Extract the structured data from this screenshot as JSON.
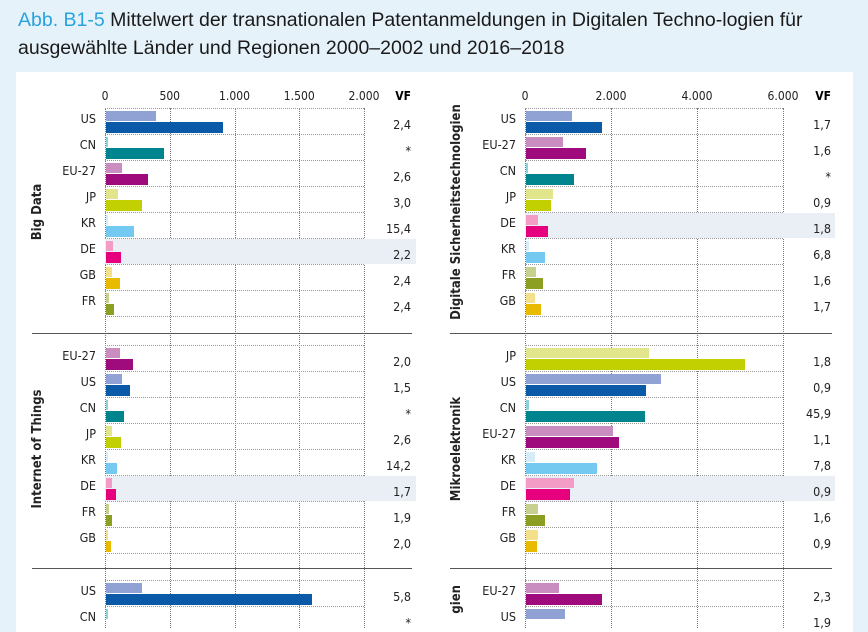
{
  "title": {
    "number": "Abb. B1-5",
    "text": " Mittelwert der transnationalen Patentanmeldungen in Digitalen Techno-logien für ausgewählte Länder und Regionen 2000–2002 und 2016–2018"
  },
  "colors": {
    "US": [
      "#8fa2d3",
      "#0b5aa7"
    ],
    "CN": [
      "#8fd3da",
      "#00858f"
    ],
    "EU-27": [
      "#c98ebf",
      "#9f0a7c"
    ],
    "JP": [
      "#e1e68c",
      "#c2cf00"
    ],
    "KR": [
      "#d6edf9",
      "#74c9f0"
    ],
    "DE": [
      "#f29cc6",
      "#e6007e"
    ],
    "GB": [
      "#f4df8a",
      "#e8bb00"
    ],
    "FR": [
      "#c7d08f",
      "#8c9f22"
    ]
  },
  "highlight": "DE",
  "vf_header": "VF",
  "chart_data": [
    {
      "type": "bar",
      "title": "Big Data",
      "xlim": [
        0,
        2000
      ],
      "ticks": [
        "0",
        "500",
        "1.000",
        "1.500",
        "2.000"
      ],
      "tick_values": [
        0,
        500,
        1000,
        1500,
        2000
      ],
      "categories": [
        "US",
        "CN",
        "EU-27",
        "JP",
        "KR",
        "DE",
        "GB",
        "FR"
      ],
      "series": [
        {
          "values": [
            385,
            5,
            127,
            96,
            14,
            54,
            47,
            27
          ]
        },
        {
          "values": [
            905,
            450,
            324,
            281,
            219,
            113,
            111,
            62
          ]
        }
      ],
      "vf": [
        "2,4",
        "*",
        "2,6",
        "3,0",
        "15,4",
        "2,2",
        "2,4",
        "2,4"
      ]
    },
    {
      "type": "bar",
      "title": "Internet of Things",
      "xlim": [
        0,
        2000
      ],
      "categories": [
        "EU-27",
        "US",
        "CN",
        "JP",
        "KR",
        "DE",
        "FR",
        "GB"
      ],
      "series": [
        {
          "values": [
            106,
            126,
            2,
            44,
            6,
            47,
            23,
            18
          ]
        },
        {
          "values": [
            211,
            188,
            137,
            116,
            83,
            80,
            44,
            36
          ]
        }
      ],
      "vf": [
        "2,0",
        "1,5",
        "*",
        "2,6",
        "14,2",
        "1,7",
        "1,9",
        "2,0"
      ]
    },
    {
      "type": "bar",
      "title": "",
      "xlim": [
        0,
        2000
      ],
      "categories": [
        "US",
        "CN"
      ],
      "series": [
        {
          "values": [
            275,
            5
          ]
        },
        {
          "values": [
            1594,
            null
          ]
        }
      ],
      "vf": [
        "5,8",
        "*"
      ]
    },
    {
      "type": "bar",
      "title": "Digitale Sicherheitstechnologien",
      "xlim": [
        0,
        6000
      ],
      "ticks": [
        "0",
        "2.000",
        "4.000",
        "6.000"
      ],
      "tick_values": [
        0,
        2000,
        4000,
        6000
      ],
      "categories": [
        "US",
        "EU-27",
        "CN",
        "JP",
        "DE",
        "KR",
        "FR",
        "GB"
      ],
      "series": [
        {
          "values": [
            1069,
            852,
            20,
            620,
            286,
            64,
            240,
            200
          ]
        },
        {
          "values": [
            1773,
            1401,
            1115,
            589,
            511,
            434,
            388,
            341
          ]
        }
      ],
      "vf": [
        "1,7",
        "1,6",
        "*",
        "0,9",
        "1,8",
        "6,8",
        "1,6",
        "1,7"
      ]
    },
    {
      "type": "bar",
      "title": "Mikroelektronik",
      "xlim": [
        0,
        6000
      ],
      "categories": [
        "JP",
        "US",
        "CN",
        "EU-27",
        "KR",
        "DE",
        "FR",
        "GB"
      ],
      "series": [
        {
          "values": [
            2850,
            3129,
            60,
            2014,
            209,
            1115,
            279,
            279
          ]
        },
        {
          "values": [
            5095,
            2781,
            2757,
            2160,
            1642,
            1022,
            441,
            255
          ]
        }
      ],
      "vf": [
        "1,8",
        "0,9",
        "45,9",
        "1,1",
        "7,8",
        "0,9",
        "1,6",
        "0,9"
      ]
    },
    {
      "type": "bar",
      "title": "gien",
      "xlim": [
        0,
        6000
      ],
      "categories": [
        "EU-27",
        "US"
      ],
      "series": [
        {
          "values": [
            760,
            899
          ]
        },
        {
          "values": [
            1773,
            null
          ]
        }
      ],
      "vf": [
        "2,3",
        "1,9"
      ]
    }
  ]
}
